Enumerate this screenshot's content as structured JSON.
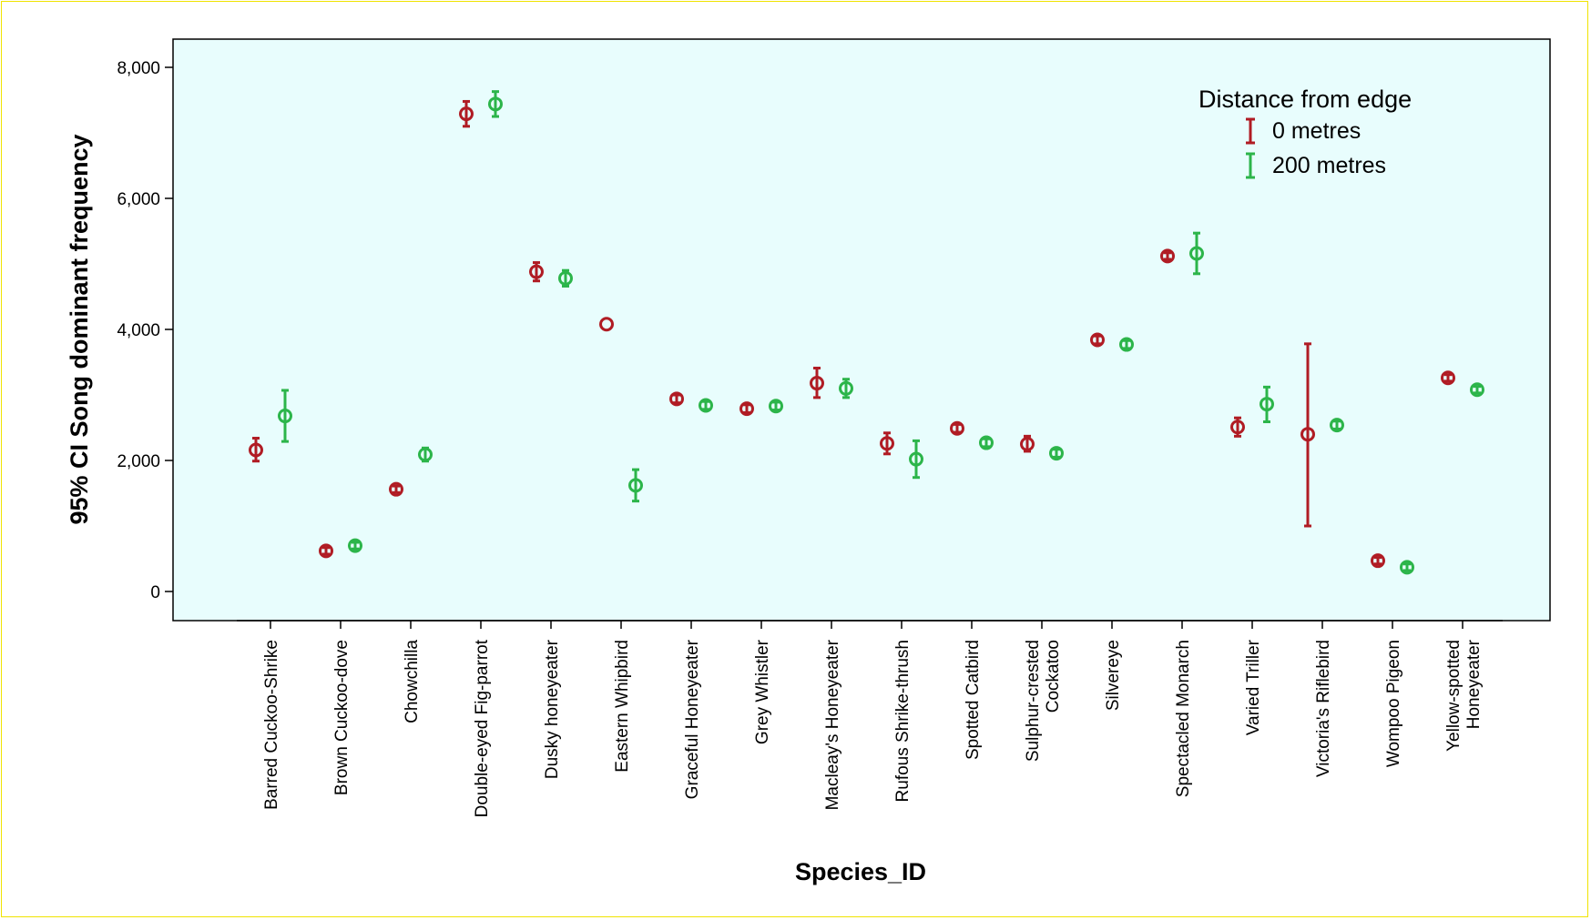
{
  "chart_data": {
    "type": "scatter",
    "subtype": "error-bar",
    "title": "",
    "xlabel": "Species_ID",
    "ylabel": "95% CI Song dominant frequency",
    "ylim": [
      0,
      8000
    ],
    "yticks": [
      0,
      2000,
      4000,
      6000,
      8000
    ],
    "ytick_labels": [
      "0",
      "2,000",
      "4,000",
      "6,000",
      "8,000"
    ],
    "grid": false,
    "background_color": "#e8fdfd",
    "legend": {
      "title": "Distance from edge",
      "position": "top-right"
    },
    "categories": [
      [
        "Barred Cuckoo-Shrike"
      ],
      [
        "Brown Cuckoo-dove"
      ],
      [
        "Chowchilla"
      ],
      [
        "Double-eyed Fig-parrot"
      ],
      [
        "Dusky honeyeater"
      ],
      [
        "Eastern Whipbird"
      ],
      [
        "Graceful Honeyeater"
      ],
      [
        "Grey Whistler"
      ],
      [
        "Macleay's Honeyeater"
      ],
      [
        "Rufous Shrike-thrush"
      ],
      [
        "Spotted Catbird"
      ],
      [
        "Sulphur-crested",
        "Cockatoo"
      ],
      [
        "Silvereye"
      ],
      [
        "Spectacled Monarch"
      ],
      [
        "Varied Triller"
      ],
      [
        "Victoria's Riflebird"
      ],
      [
        "Wompoo Pigeon"
      ],
      [
        "Yellow-spotted",
        "Honeyeater"
      ]
    ],
    "series": [
      {
        "name": "0 metres",
        "color": "#b01c24",
        "mean": [
          2160,
          620,
          1560,
          7290,
          4880,
          4080,
          2940,
          2790,
          3180,
          2260,
          2490,
          2250,
          3840,
          5120,
          2510,
          2400,
          470,
          3260
        ],
        "lower": [
          1990,
          570,
          1510,
          7100,
          4740,
          4080,
          2880,
          2730,
          2960,
          2100,
          2430,
          2140,
          3780,
          5070,
          2370,
          1000,
          420,
          3210
        ],
        "upper": [
          2340,
          670,
          1610,
          7480,
          5020,
          4080,
          3000,
          2850,
          3410,
          2420,
          2550,
          2370,
          3900,
          5170,
          2650,
          3780,
          520,
          3310
        ]
      },
      {
        "name": "200 metres",
        "color": "#2cb54a",
        "mean": [
          2680,
          700,
          2090,
          7440,
          4780,
          1620,
          2840,
          2830,
          3100,
          2020,
          2270,
          2110,
          3770,
          5160,
          2860,
          2540,
          370,
          3080
        ],
        "lower": [
          2290,
          650,
          1990,
          7250,
          4660,
          1380,
          2780,
          2770,
          2960,
          1740,
          2210,
          2050,
          3710,
          4850,
          2590,
          2480,
          320,
          3030
        ],
        "upper": [
          3070,
          750,
          2190,
          7630,
          4900,
          1860,
          2900,
          2890,
          3240,
          2300,
          2330,
          2170,
          3830,
          5470,
          3120,
          2600,
          420,
          3130
        ]
      }
    ]
  }
}
